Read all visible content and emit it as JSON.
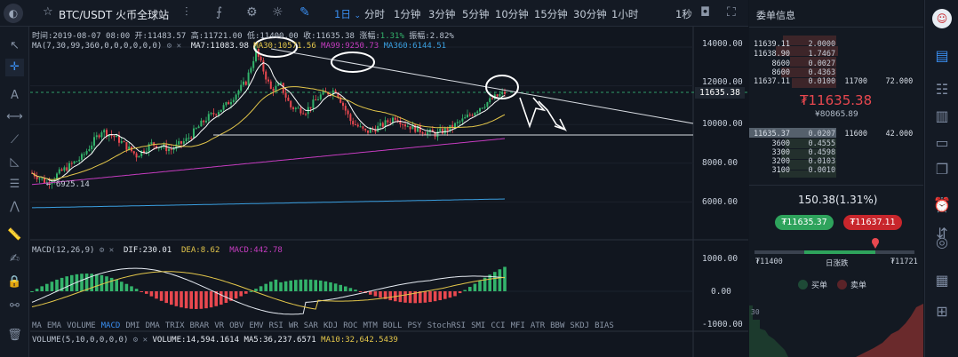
{
  "toolbar": {
    "logo_glyph": "◐",
    "symbol": "BTC/USDT",
    "exchange": "火币全球站",
    "intervals": [
      "1日",
      "分时",
      "1分钟",
      "3分钟",
      "5分钟",
      "10分钟",
      "15分钟",
      "30分钟",
      "1小时"
    ],
    "active_interval": "1日",
    "interval_caret": "⌄",
    "realtime": "1秒"
  },
  "ohlc": {
    "time_label": "时间:",
    "time": "2019-08-07 08:00",
    "open_label": "开:",
    "open": "11483.57",
    "high_label": "高:",
    "high": "11721.00",
    "low_label": "低:",
    "low": "11400.00",
    "close_label": "收:",
    "close": "11635.38",
    "chg_label": "涨幅:",
    "chg": "1.31%",
    "amp_label": "振幅:",
    "amp": "2.82%"
  },
  "ma": {
    "label": "MA(7,30,99,360,0,0,0,0,0,0)",
    "ma7": "MA7:11083.98",
    "ma30": "MA30:10571.56",
    "ma99": "MA99:9250.73",
    "ma360": "MA360:6144.51"
  },
  "macd": {
    "label": "MACD(12,26,9)",
    "dif": "DIF:230.01",
    "dea": "DEA:8.62",
    "macd": "MACD:442.78"
  },
  "volume": {
    "label": "VOLUME(5,10,0,0,0,0)",
    "vol": "VOLUME:14,594.1614",
    "ma5": "MA5:36,237.6571",
    "ma10": "MA10:32,642.5439"
  },
  "price_axis": [
    "14000.00",
    "12000.00",
    "10000.00",
    "8000.00",
    "6000.00"
  ],
  "macd_axis": [
    "1000.00",
    "0.00",
    "-1000.00"
  ],
  "current_price_tag": "11635.38",
  "low_annotation": "← 6925.14",
  "indicator_tabs": [
    "MA",
    "EMA",
    "VOLUME",
    "MACD",
    "DMI",
    "DMA",
    "TRIX",
    "BRAR",
    "VR",
    "OBV",
    "EMV",
    "RSI",
    "WR",
    "SAR",
    "KDJ",
    "ROC",
    "MTM",
    "BOLL",
    "PSY",
    "StochRSI",
    "SMI",
    "CCI",
    "MFI",
    "ATR",
    "BBW",
    "SKDJ",
    "BIAS"
  ],
  "active_tab": "MACD",
  "orderbook": {
    "title": "委单信息",
    "asks": [
      {
        "price": "11639.11",
        "qty": "2.0000"
      },
      {
        "price": "11638.90",
        "qty": "1.7467"
      },
      {
        "price": "8600",
        "qty": "0.0027"
      },
      {
        "price": "8600",
        "qty": "0.4363"
      },
      {
        "price": "11637.11",
        "qty": "0.0100",
        "sum_price": "11700",
        "sum_qty": "72.000"
      }
    ],
    "last_price": "₮11635.38",
    "last_cny": "¥80865.89",
    "bids": [
      {
        "price": "11635.37",
        "qty": "0.0207",
        "sum_price": "11600",
        "sum_qty": "42.000"
      },
      {
        "price": "3600",
        "qty": "0.4555"
      },
      {
        "price": "3300",
        "qty": "0.4598"
      },
      {
        "price": "3200",
        "qty": "0.0103"
      },
      {
        "price": "3100",
        "qty": "0.0010"
      }
    ],
    "change": "150.38(1.31%)",
    "bid_button": "₮11635.37",
    "ask_button": "₮11637.11",
    "range_low": "₮11400",
    "range_label": "日涨跌",
    "range_high": "₮11721",
    "buy_label": "买单",
    "sell_label": "卖单"
  },
  "colors": {
    "up": "#33b36b",
    "down": "#e9484f",
    "accent": "#3a8ef0",
    "ma7": "#ffffff",
    "ma30": "#e3c64a",
    "ma99": "#c63cc0",
    "ma360": "#3a9fe0"
  }
}
